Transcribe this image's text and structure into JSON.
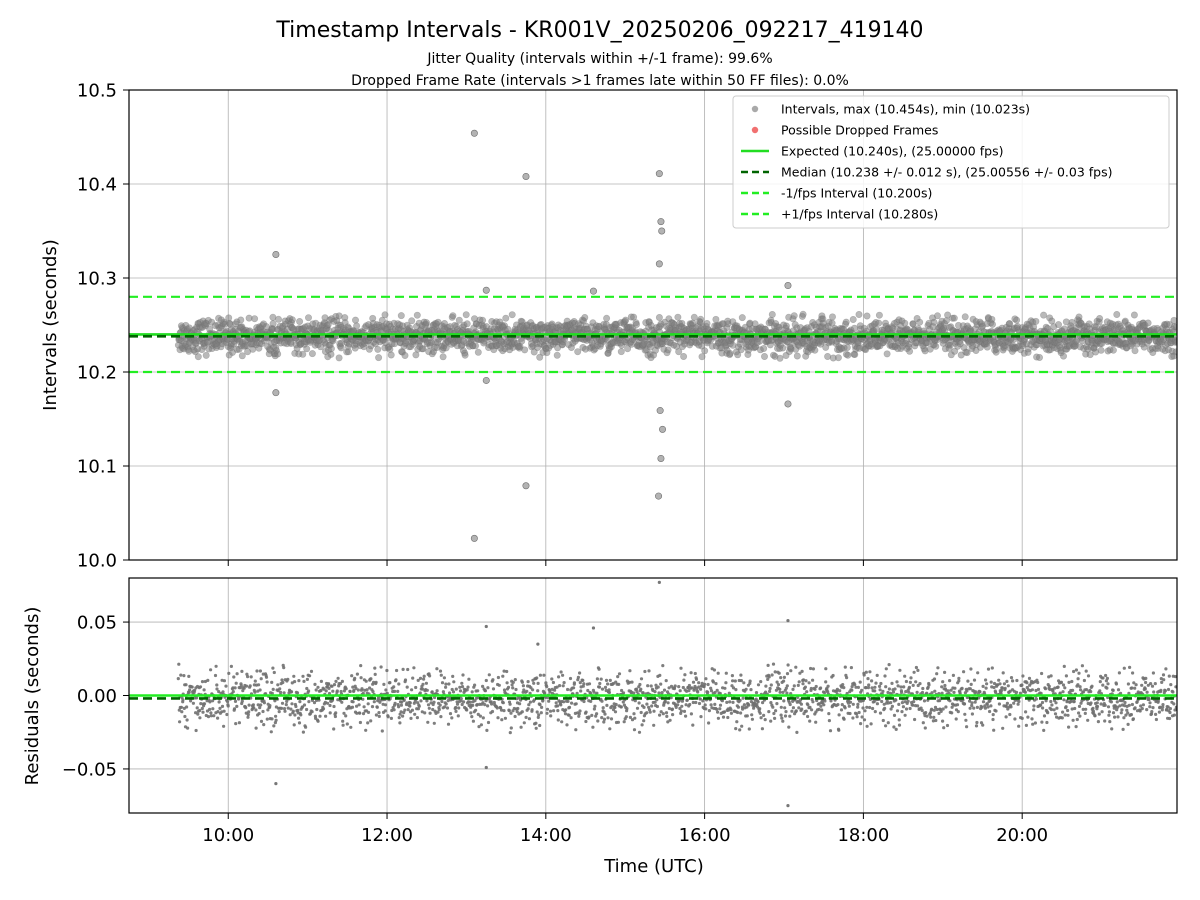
{
  "chart_data": {
    "type": "scatter",
    "title": "Timestamp Intervals - KR001V_20250206_092217_419140",
    "subtitle_lines": [
      "Jitter Quality (intervals within +/-1 frame): 99.6%",
      "Dropped Frame Rate (intervals >1 frames late within 50 FF files): 0.0%"
    ],
    "xlabel": "Time (UTC)",
    "x_ticks": [
      "10:00",
      "12:00",
      "14:00",
      "16:00",
      "18:00",
      "20:00"
    ],
    "x_tick_hours": [
      10,
      12,
      14,
      16,
      18,
      20
    ],
    "x_range_hours": [
      8.75,
      21.95
    ],
    "data_start_hours": 9.37,
    "data_end_hours": 21.95,
    "grid": true,
    "legend_placement": "top-right",
    "top_panel": {
      "ylabel": "Intervals (seconds)",
      "ylim": [
        10.0,
        10.5
      ],
      "y_ticks": [
        "10.0",
        "10.1",
        "10.2",
        "10.3",
        "10.4",
        "10.5"
      ],
      "y_tick_values": [
        10.0,
        10.1,
        10.2,
        10.3,
        10.4,
        10.5
      ],
      "expected": 10.24,
      "median": 10.238,
      "lower_interval": 10.2,
      "upper_interval": 10.28,
      "scatter_color": "#808080",
      "outliers": [
        {
          "x": 10.6,
          "y": 10.325
        },
        {
          "x": 10.6,
          "y": 10.178
        },
        {
          "x": 13.1,
          "y": 10.454
        },
        {
          "x": 13.1,
          "y": 10.023
        },
        {
          "x": 13.25,
          "y": 10.287
        },
        {
          "x": 13.25,
          "y": 10.191
        },
        {
          "x": 13.75,
          "y": 10.408
        },
        {
          "x": 13.75,
          "y": 10.079
        },
        {
          "x": 14.6,
          "y": 10.286
        },
        {
          "x": 15.43,
          "y": 10.411
        },
        {
          "x": 15.45,
          "y": 10.36
        },
        {
          "x": 15.46,
          "y": 10.35
        },
        {
          "x": 15.43,
          "y": 10.315
        },
        {
          "x": 15.44,
          "y": 10.159
        },
        {
          "x": 15.47,
          "y": 10.139
        },
        {
          "x": 15.45,
          "y": 10.108
        },
        {
          "x": 15.42,
          "y": 10.068
        },
        {
          "x": 17.05,
          "y": 10.292
        },
        {
          "x": 17.05,
          "y": 10.166
        }
      ],
      "band": {
        "center": 10.238,
        "spread": 0.018
      }
    },
    "bottom_panel": {
      "ylabel": "Residuals (seconds)",
      "ylim": [
        -0.08,
        0.08
      ],
      "y_ticks": [
        "0.05",
        "0.00",
        "−0.05"
      ],
      "y_tick_values": [
        0.05,
        0.0,
        -0.05
      ],
      "expected_residual": 0.0,
      "median_residual": -0.002,
      "scatter_color": "#707070",
      "outliers": [
        {
          "x": 10.6,
          "y": -0.06
        },
        {
          "x": 13.25,
          "y": 0.047
        },
        {
          "x": 13.25,
          "y": -0.049
        },
        {
          "x": 13.9,
          "y": 0.035
        },
        {
          "x": 14.6,
          "y": 0.046
        },
        {
          "x": 15.43,
          "y": 0.077
        },
        {
          "x": 17.05,
          "y": 0.051
        },
        {
          "x": 17.05,
          "y": -0.075
        }
      ],
      "band": {
        "center": -0.002,
        "spread": 0.018
      }
    },
    "legend": [
      {
        "label": "Intervals, max (10.454s), min (10.023s)",
        "kind": "marker",
        "color": "#a0a0a0"
      },
      {
        "label": "Possible Dropped Frames",
        "kind": "marker",
        "color": "#f06060"
      },
      {
        "label": "Expected (10.240s), (25.00000 fps)",
        "kind": "solid",
        "color": "#22dd22"
      },
      {
        "label": "Median (10.238 +/- 0.012 s), (25.00556 +/- 0.03 fps)",
        "kind": "dashed",
        "color": "#006400"
      },
      {
        "label": "-1/fps Interval (10.200s)",
        "kind": "dashed",
        "color": "#22ee22"
      },
      {
        "label": "+1/fps Interval (10.280s)",
        "kind": "dashed",
        "color": "#22ee22"
      }
    ]
  }
}
